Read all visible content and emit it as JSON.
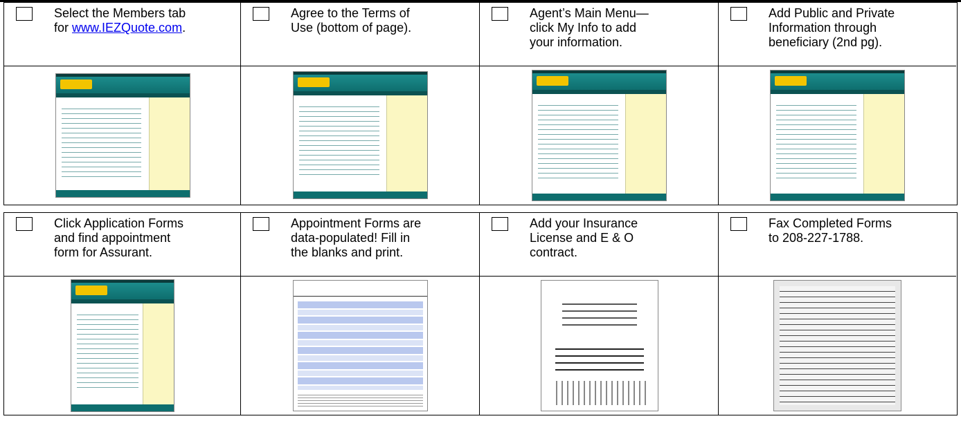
{
  "rows": [
    {
      "cells": [
        {
          "lines": [
            [
              {
                "text": "Select the Members tab"
              }
            ],
            [
              {
                "text": "for "
              },
              {
                "text": "www.IEZQuote.com",
                "link": true
              },
              {
                "text": "."
              }
            ]
          ]
        },
        {
          "lines": [
            [
              {
                "text": "Agree to the Terms of"
              }
            ],
            [
              {
                "text": "Use (bottom of page)."
              }
            ]
          ]
        },
        {
          "lines": [
            [
              {
                "text": "Agent’s Main Menu—"
              }
            ],
            [
              {
                "text": "click My Info to add"
              }
            ],
            [
              {
                "text": "your information."
              }
            ]
          ]
        },
        {
          "lines": [
            [
              {
                "text": "Add Public and Private"
              }
            ],
            [
              {
                "text": "Information through"
              }
            ],
            [
              {
                "text": "beneficiary (2nd pg)."
              }
            ]
          ]
        }
      ]
    },
    {
      "cells": [
        {
          "lines": [
            [
              {
                "text": "Click Application Forms"
              }
            ],
            [
              {
                "text": "and find appointment"
              }
            ],
            [
              {
                "text": "form for Assurant."
              }
            ]
          ]
        },
        {
          "lines": [
            [
              {
                "text": "Appointment Forms are"
              }
            ],
            [
              {
                "text": "data-populated!  Fill in"
              }
            ],
            [
              {
                "text": "the blanks and print."
              }
            ]
          ]
        },
        {
          "lines": [
            [
              {
                "text": "Add your Insurance"
              }
            ],
            [
              {
                "text": "License and E & O"
              }
            ],
            [
              {
                "text": "contract."
              }
            ]
          ]
        },
        {
          "lines": [
            [
              {
                "text": "Fax Completed Forms"
              }
            ],
            [
              {
                "text": "to 208-227-1788."
              }
            ]
          ]
        }
      ]
    }
  ]
}
